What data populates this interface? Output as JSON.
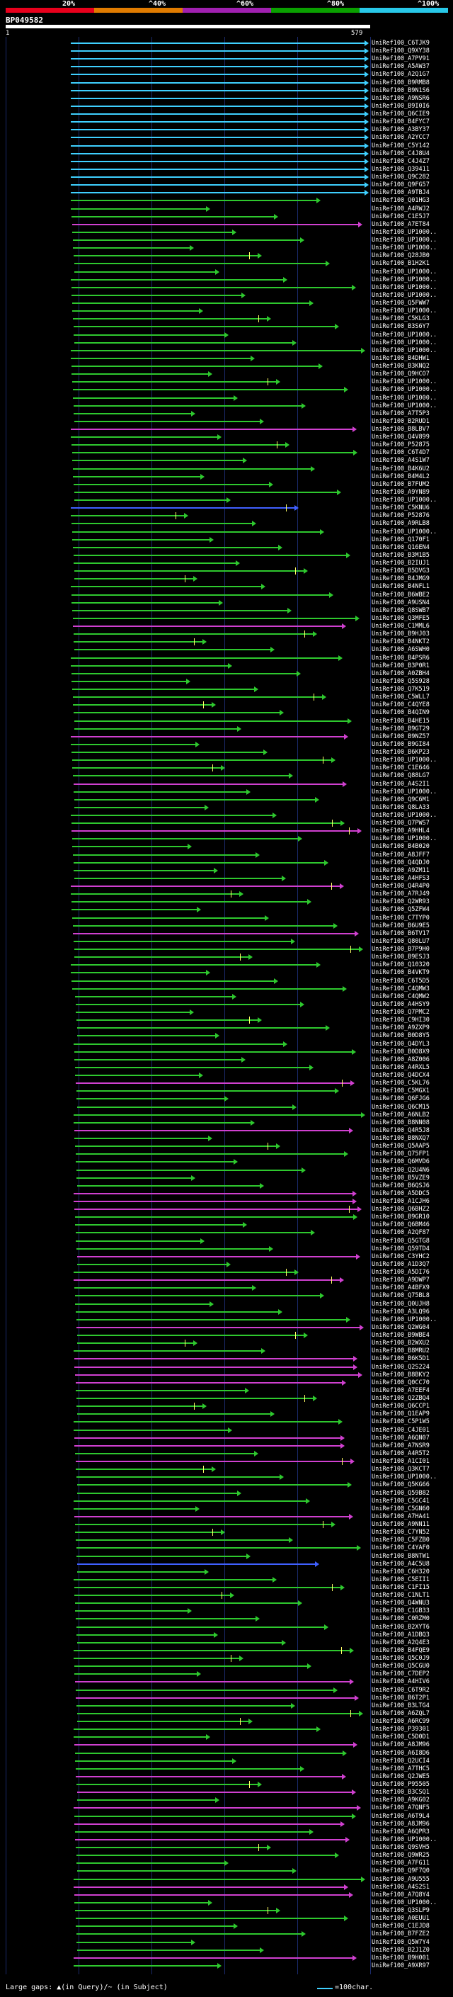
{
  "scale": {
    "percent_labels": [
      "20%",
      "^40%",
      "^60%",
      "^80%",
      "^100%"
    ],
    "segment_colors": [
      "#e8001c",
      "#e07b00",
      "#a020b0",
      "#0aa000",
      "#28c8e8"
    ]
  },
  "query": {
    "id": "BP049582",
    "start_label": "1",
    "end_label": "579",
    "bar_color": "#ffffff"
  },
  "hit_colors": {
    "cyan": "#3fd0ff",
    "green": "#2ec82e",
    "magenta": "#d040d0",
    "blue": "#4060ff",
    "tick": "#ffff66"
  },
  "hits": [
    {
      "id": "UniRef100_C6TJK9",
      "color": "cyan"
    },
    {
      "id": "UniRef100_Q9XY38",
      "color": "cyan"
    },
    {
      "id": "UniRef100_A7PV91",
      "color": "cyan"
    },
    {
      "id": "UniRef100_A5AW37",
      "color": "cyan"
    },
    {
      "id": "UniRef100_A2Q1G7",
      "color": "cyan"
    },
    {
      "id": "UniRef100_B9RMB8",
      "color": "cyan"
    },
    {
      "id": "UniRef100_B9N1S6",
      "color": "cyan"
    },
    {
      "id": "UniRef100_A9NSR6",
      "color": "cyan"
    },
    {
      "id": "UniRef100_B9I0I6",
      "color": "cyan"
    },
    {
      "id": "UniRef100_Q6CIE9",
      "color": "cyan"
    },
    {
      "id": "UniRef100_B4FYC7",
      "color": "cyan"
    },
    {
      "id": "UniRef100_A3BY37",
      "color": "cyan"
    },
    {
      "id": "UniRef100_A2YCC7",
      "color": "cyan"
    },
    {
      "id": "UniRef100_C5Y142",
      "color": "cyan"
    },
    {
      "id": "UniRef100_C4J8U4",
      "color": "cyan"
    },
    {
      "id": "UniRef100_C4J4Z7",
      "color": "cyan"
    },
    {
      "id": "UniRef100_Q39411",
      "color": "cyan"
    },
    {
      "id": "UniRef100_Q9C282",
      "color": "cyan"
    },
    {
      "id": "UniRef100_Q9FG57",
      "color": "cyan"
    },
    {
      "id": "UniRef100_A9TBJ4",
      "color": "cyan"
    },
    {
      "id": "UniRef100_Q01HG3",
      "color": "green"
    },
    {
      "id": "UniRef100_A4RWJ2",
      "color": "green"
    },
    {
      "id": "UniRef100_C1E5J7",
      "color": "green"
    },
    {
      "id": "UniRef100_A7ET84",
      "color": "magenta"
    },
    {
      "id": "UniRef100_UP1000..",
      "color": "green"
    },
    {
      "id": "UniRef100_UP1000..",
      "color": "green"
    },
    {
      "id": "UniRef100_UP1000..",
      "color": "green"
    },
    {
      "id": "UniRef100_Q28JB0",
      "color": "green"
    },
    {
      "id": "UniRef100_B1H2K1",
      "color": "green"
    },
    {
      "id": "UniRef100_UP1000..",
      "color": "green"
    },
    {
      "id": "UniRef100_UP1000..",
      "color": "green"
    },
    {
      "id": "UniRef100_UP1000..",
      "color": "green"
    },
    {
      "id": "UniRef100_UP1000..",
      "color": "green"
    },
    {
      "id": "UniRef100_Q5FWW7",
      "color": "green"
    },
    {
      "id": "UniRef100_UP1000..",
      "color": "green"
    },
    {
      "id": "UniRef100_C5KLG3",
      "color": "green"
    },
    {
      "id": "UniRef100_B3S6Y7",
      "color": "green"
    },
    {
      "id": "UniRef100_UP1000..",
      "color": "green"
    },
    {
      "id": "UniRef100_UP1000..",
      "color": "green"
    },
    {
      "id": "UniRef100_UP1000..",
      "color": "green"
    },
    {
      "id": "UniRef100_B4DHW1",
      "color": "green"
    },
    {
      "id": "UniRef100_B3KNQ2",
      "color": "green"
    },
    {
      "id": "UniRef100_Q9HCO7",
      "color": "green"
    },
    {
      "id": "UniRef100_UP1000..",
      "color": "green"
    },
    {
      "id": "UniRef100_UP1000..",
      "color": "green"
    },
    {
      "id": "UniRef100_UP1000..",
      "color": "green"
    },
    {
      "id": "UniRef100_UP1000..",
      "color": "green"
    },
    {
      "id": "UniRef100_A7T5P3",
      "color": "green"
    },
    {
      "id": "UniRef100_B2RUD1",
      "color": "green"
    },
    {
      "id": "UniRef100_B8LBV7",
      "color": "magenta"
    },
    {
      "id": "UniRef100_Q4V899",
      "color": "green"
    },
    {
      "id": "UniRef100_P52875",
      "color": "green"
    },
    {
      "id": "UniRef100_C6T4D7",
      "color": "green"
    },
    {
      "id": "UniRef100_A4S1W7",
      "color": "green"
    },
    {
      "id": "UniRef100_B4K6U2",
      "color": "green"
    },
    {
      "id": "UniRef100_B4M4L2",
      "color": "green"
    },
    {
      "id": "UniRef100_B7FUM2",
      "color": "green"
    },
    {
      "id": "UniRef100_A9YN89",
      "color": "green"
    },
    {
      "id": "UniRef100_UP1000..",
      "color": "green"
    },
    {
      "id": "UniRef100_C5KNU6",
      "color": "blue"
    },
    {
      "id": "UniRef100_P52876",
      "color": "green"
    },
    {
      "id": "UniRef100_A9RLB8",
      "color": "green"
    },
    {
      "id": "UniRef100_UP1000..",
      "color": "green"
    },
    {
      "id": "UniRef100_Q170F1",
      "color": "green"
    },
    {
      "id": "UniRef100_Q16EN4",
      "color": "green"
    },
    {
      "id": "UniRef100_B3M1B5",
      "color": "green"
    },
    {
      "id": "UniRef100_B2IUJ1",
      "color": "green"
    },
    {
      "id": "UniRef100_B5DVG3",
      "color": "green"
    },
    {
      "id": "UniRef100_B4JMG9",
      "color": "green"
    },
    {
      "id": "UniRef100_B4NFL1",
      "color": "green"
    },
    {
      "id": "UniRef100_B6WBE2",
      "color": "green"
    },
    {
      "id": "UniRef100_A9USN4",
      "color": "green"
    },
    {
      "id": "UniRef100_Q8SWB7",
      "color": "green"
    },
    {
      "id": "UniRef100_Q3MFE5",
      "color": "green"
    },
    {
      "id": "UniRef100_C1MML6",
      "color": "magenta"
    },
    {
      "id": "UniRef100_B9HJ03",
      "color": "green"
    },
    {
      "id": "UniRef100_B4NKT2",
      "color": "green"
    },
    {
      "id": "UniRef100_A6SWH0",
      "color": "green"
    },
    {
      "id": "UniRef100_B4PSR6",
      "color": "green"
    },
    {
      "id": "UniRef100_B3P0R1",
      "color": "green"
    },
    {
      "id": "UniRef100_A0ZBH4",
      "color": "green"
    },
    {
      "id": "UniRef100_Q5S928",
      "color": "green"
    },
    {
      "id": "UniRef100_Q7K519",
      "color": "green"
    },
    {
      "id": "UniRef100_C5WLL7",
      "color": "green"
    },
    {
      "id": "UniRef100_C4QYE8",
      "color": "green"
    },
    {
      "id": "UniRef100_B4QIN9",
      "color": "green"
    },
    {
      "id": "UniRef100_B4HE15",
      "color": "green"
    },
    {
      "id": "UniRef100_B9GT29",
      "color": "green"
    },
    {
      "id": "UniRef100_B9NZ57",
      "color": "magenta"
    },
    {
      "id": "UniRef100_B9GI84",
      "color": "green"
    },
    {
      "id": "UniRef100_B6KP23",
      "color": "green"
    },
    {
      "id": "UniRef100_UP1000..",
      "color": "green"
    },
    {
      "id": "UniRef100_C1E646",
      "color": "green"
    },
    {
      "id": "UniRef100_Q88LG7",
      "color": "green"
    },
    {
      "id": "UniRef100_A4S2I1",
      "color": "magenta"
    },
    {
      "id": "UniRef100_UP1000..",
      "color": "green"
    },
    {
      "id": "UniRef100_Q9C6M1",
      "color": "green"
    },
    {
      "id": "UniRef100_Q8LA33",
      "color": "green"
    },
    {
      "id": "UniRef100_UP1000..",
      "color": "green"
    },
    {
      "id": "UniRef100_Q7PWS7",
      "color": "green"
    },
    {
      "id": "UniRef100_A9HHL4",
      "color": "magenta"
    },
    {
      "id": "UniRef100_UP1000..",
      "color": "green"
    },
    {
      "id": "UniRef100_B4B020",
      "color": "green"
    },
    {
      "id": "UniRef100_A8JFF7",
      "color": "green"
    },
    {
      "id": "UniRef100_Q4QDJ0",
      "color": "green"
    },
    {
      "id": "UniRef100_A9ZM11",
      "color": "green"
    },
    {
      "id": "UniRef100_A4HFS3",
      "color": "green"
    },
    {
      "id": "UniRef100_Q4R4P0",
      "color": "magenta"
    },
    {
      "id": "UniRef100_A7RJ49",
      "color": "green"
    },
    {
      "id": "UniRef100_Q2WR93",
      "color": "green"
    },
    {
      "id": "UniRef100_Q5ZFW4",
      "color": "green"
    },
    {
      "id": "UniRef100_C7TYP0",
      "color": "green"
    },
    {
      "id": "UniRef100_B6U9E5",
      "color": "green"
    },
    {
      "id": "UniRef100_B6TV17",
      "color": "magenta"
    },
    {
      "id": "UniRef100_Q80LU7",
      "color": "green"
    },
    {
      "id": "UniRef100_B7P9H0",
      "color": "green"
    },
    {
      "id": "UniRef100_B9ESJ3",
      "color": "green"
    },
    {
      "id": "UniRef100_Q10320",
      "color": "green"
    },
    {
      "id": "UniRef100_B4VKT9",
      "color": "green"
    },
    {
      "id": "UniRef100_C6T5D5",
      "color": "green"
    },
    {
      "id": "UniRef100_C4QMW3",
      "color": "green"
    },
    {
      "id": "UniRef100_C4QMW2",
      "color": "green"
    },
    {
      "id": "UniRef100_A4HSY9",
      "color": "green"
    },
    {
      "id": "UniRef100_Q7PMC2",
      "color": "green"
    },
    {
      "id": "UniRef100_C9HI30",
      "color": "green"
    },
    {
      "id": "UniRef100_A9ZXP9",
      "color": "green"
    },
    {
      "id": "UniRef100_B0D8Y5",
      "color": "green"
    },
    {
      "id": "UniRef100_Q4DYL3",
      "color": "green"
    },
    {
      "id": "UniRef100_B0D8X9",
      "color": "green"
    },
    {
      "id": "UniRef100_A8Z006",
      "color": "green"
    },
    {
      "id": "UniRef100_A4RXL5",
      "color": "green"
    },
    {
      "id": "UniRef100_Q4DCX4",
      "color": "green"
    },
    {
      "id": "UniRef100_C5KL76",
      "color": "magenta"
    },
    {
      "id": "UniRef100_C5MGX1",
      "color": "green"
    },
    {
      "id": "UniRef100_Q6FJG6",
      "color": "green"
    },
    {
      "id": "UniRef100_Q6CM15",
      "color": "green"
    },
    {
      "id": "UniRef100_A6NLB2",
      "color": "green"
    },
    {
      "id": "UniRef100_B8NN08",
      "color": "green"
    },
    {
      "id": "UniRef100_Q4R5J8",
      "color": "magenta"
    },
    {
      "id": "UniRef100_B8NXQ7",
      "color": "green"
    },
    {
      "id": "UniRef100_Q5AAP5",
      "color": "green"
    },
    {
      "id": "UniRef100_Q75FP1",
      "color": "green"
    },
    {
      "id": "UniRef100_Q6MVD6",
      "color": "green"
    },
    {
      "id": "UniRef100_Q2U4N6",
      "color": "green"
    },
    {
      "id": "UniRef100_B5VZE9",
      "color": "green"
    },
    {
      "id": "UniRef100_B6QSJ6",
      "color": "green"
    },
    {
      "id": "UniRef100_A5DDC5",
      "color": "magenta"
    },
    {
      "id": "UniRef100_A1CJH6",
      "color": "magenta"
    },
    {
      "id": "UniRef100_Q6BHZ2",
      "color": "magenta"
    },
    {
      "id": "UniRef100_B9GR10",
      "color": "green"
    },
    {
      "id": "UniRef100_Q6BM46",
      "color": "green"
    },
    {
      "id": "UniRef100_A2QF87",
      "color": "green"
    },
    {
      "id": "UniRef100_Q5GTG8",
      "color": "green"
    },
    {
      "id": "UniRef100_Q59TD4",
      "color": "green"
    },
    {
      "id": "UniRef100_C3YHC2",
      "color": "magenta"
    },
    {
      "id": "UniRef100_A1D3Q7",
      "color": "green"
    },
    {
      "id": "UniRef100_A5DI76",
      "color": "green"
    },
    {
      "id": "UniRef100_A9DWP7",
      "color": "magenta"
    },
    {
      "id": "UniRef100_A4BFX9",
      "color": "green"
    },
    {
      "id": "UniRef100_Q75BL8",
      "color": "green"
    },
    {
      "id": "UniRef100_Q0UJH8",
      "color": "green"
    },
    {
      "id": "UniRef100_A3LQ96",
      "color": "green"
    },
    {
      "id": "UniRef100_UP1000..",
      "color": "green"
    },
    {
      "id": "UniRef100_Q2WG04",
      "color": "magenta"
    },
    {
      "id": "UniRef100_B9WBE4",
      "color": "green"
    },
    {
      "id": "UniRef100_B2WXU2",
      "color": "green"
    },
    {
      "id": "UniRef100_B8MRU2",
      "color": "green"
    },
    {
      "id": "UniRef100_B6K5D1",
      "color": "magenta"
    },
    {
      "id": "UniRef100_Q2S224",
      "color": "magenta"
    },
    {
      "id": "UniRef100_B8BKY2",
      "color": "magenta"
    },
    {
      "id": "UniRef100_Q0CC70",
      "color": "magenta"
    },
    {
      "id": "UniRef100_A7EEF4",
      "color": "green"
    },
    {
      "id": "UniRef100_Q2ZBQ4",
      "color": "green"
    },
    {
      "id": "UniRef100_Q6CCP1",
      "color": "green"
    },
    {
      "id": "UniRef100_Q1EAP9",
      "color": "green"
    },
    {
      "id": "UniRef100_C5P1W5",
      "color": "green"
    },
    {
      "id": "UniRef100_C4JE01",
      "color": "green"
    },
    {
      "id": "UniRef100_A6QN07",
      "color": "magenta"
    },
    {
      "id": "UniRef100_A7NSR9",
      "color": "magenta"
    },
    {
      "id": "UniRef100_A4R5T2",
      "color": "green"
    },
    {
      "id": "UniRef100_A1CI01",
      "color": "magenta"
    },
    {
      "id": "UniRef100_Q3KCT7",
      "color": "green"
    },
    {
      "id": "UniRef100_UP1000..",
      "color": "green"
    },
    {
      "id": "UniRef100_Q5KG66",
      "color": "green"
    },
    {
      "id": "UniRef100_Q59B82",
      "color": "green"
    },
    {
      "id": "UniRef100_C5GC41",
      "color": "green"
    },
    {
      "id": "UniRef100_C5GN60",
      "color": "green"
    },
    {
      "id": "UniRef100_A7HA41",
      "color": "magenta"
    },
    {
      "id": "UniRef100_A9NN11",
      "color": "green"
    },
    {
      "id": "UniRef100_C7YN52",
      "color": "green"
    },
    {
      "id": "UniRef100_C5FZB0",
      "color": "green"
    },
    {
      "id": "UniRef100_C4YAF0",
      "color": "green"
    },
    {
      "id": "UniRef100_B8NTW1",
      "color": "green"
    },
    {
      "id": "UniRef100_A4C5U8",
      "color": "blue"
    },
    {
      "id": "UniRef100_C6H320",
      "color": "green"
    },
    {
      "id": "UniRef100_C5EII1",
      "color": "green"
    },
    {
      "id": "UniRef100_C1FI15",
      "color": "green"
    },
    {
      "id": "UniRef100_C1NLT1",
      "color": "green"
    },
    {
      "id": "UniRef100_Q4WNU3",
      "color": "green"
    },
    {
      "id": "UniRef100_C1GB33",
      "color": "green"
    },
    {
      "id": "UniRef100_C0RZM0",
      "color": "green"
    },
    {
      "id": "UniRef100_B2XYT6",
      "color": "green"
    },
    {
      "id": "UniRef100_A1DBQ3",
      "color": "green"
    },
    {
      "id": "UniRef100_A2Q4E3",
      "color": "green"
    },
    {
      "id": "UniRef100_B4FQE9",
      "color": "green"
    },
    {
      "id": "UniRef100_Q5C0J9",
      "color": "green"
    },
    {
      "id": "UniRef100_Q5CGU0",
      "color": "green"
    },
    {
      "id": "UniRef100_C7DEP2",
      "color": "green"
    },
    {
      "id": "UniRef100_A4HIV6",
      "color": "magenta"
    },
    {
      "id": "UniRef100_C6T9R2",
      "color": "green"
    },
    {
      "id": "UniRef100_B6T2P1",
      "color": "magenta"
    },
    {
      "id": "UniRef100_B3LTG4",
      "color": "green"
    },
    {
      "id": "UniRef100_A6ZQL7",
      "color": "green"
    },
    {
      "id": "UniRef100_A6RC99",
      "color": "green"
    },
    {
      "id": "UniRef100_P39301",
      "color": "green"
    },
    {
      "id": "UniRef100_C5D0D1",
      "color": "green"
    },
    {
      "id": "UniRef100_A8JM96",
      "color": "magenta"
    },
    {
      "id": "UniRef100_A6I8D6",
      "color": "green"
    },
    {
      "id": "UniRef100_Q2UCI4",
      "color": "green"
    },
    {
      "id": "UniRef100_A7THC5",
      "color": "green"
    },
    {
      "id": "UniRef100_Q2JWE5",
      "color": "magenta"
    },
    {
      "id": "UniRef100_P95505",
      "color": "green"
    },
    {
      "id": "UniRef100_B3CSQ1",
      "color": "magenta"
    },
    {
      "id": "UniRef100_A9KG02",
      "color": "green"
    },
    {
      "id": "UniRef100_A7QNF5",
      "color": "magenta"
    },
    {
      "id": "UniRef100_A6T9L4",
      "color": "green"
    },
    {
      "id": "UniRef100_A8JM96",
      "color": "magenta"
    },
    {
      "id": "UniRef100_A6QPR3",
      "color": "green"
    },
    {
      "id": "UniRef100_UP1000..",
      "color": "magenta"
    },
    {
      "id": "UniRef100_Q9SVH5",
      "color": "green"
    },
    {
      "id": "UniRef100_Q9WR25",
      "color": "green"
    },
    {
      "id": "UniRef100_A7FG11",
      "color": "green"
    },
    {
      "id": "UniRef100_Q9F7Q0",
      "color": "green"
    },
    {
      "id": "UniRef100_A9U555",
      "color": "green"
    },
    {
      "id": "UniRef100_A4S2S1",
      "color": "magenta"
    },
    {
      "id": "UniRef100_A7Q8Y4",
      "color": "magenta"
    },
    {
      "id": "UniRef100_UP1000..",
      "color": "green"
    },
    {
      "id": "UniRef100_Q3SLP9",
      "color": "green"
    },
    {
      "id": "UniRef100_A0EUU1",
      "color": "green"
    },
    {
      "id": "UniRef100_C1EJD8",
      "color": "green"
    },
    {
      "id": "UniRef100_B7FZE2",
      "color": "green"
    },
    {
      "id": "UniRef100_Q5W7Y4",
      "color": "green"
    },
    {
      "id": "UniRef100_B2J1Z0",
      "color": "green"
    },
    {
      "id": "UniRef100_B9H001",
      "color": "magenta"
    },
    {
      "id": "UniRef100_A9XR97",
      "color": "green"
    }
  ],
  "footer": {
    "gap_note": "Large gaps: ▲(in Query)/~ (in Subject)",
    "scale_note": "=100char."
  }
}
